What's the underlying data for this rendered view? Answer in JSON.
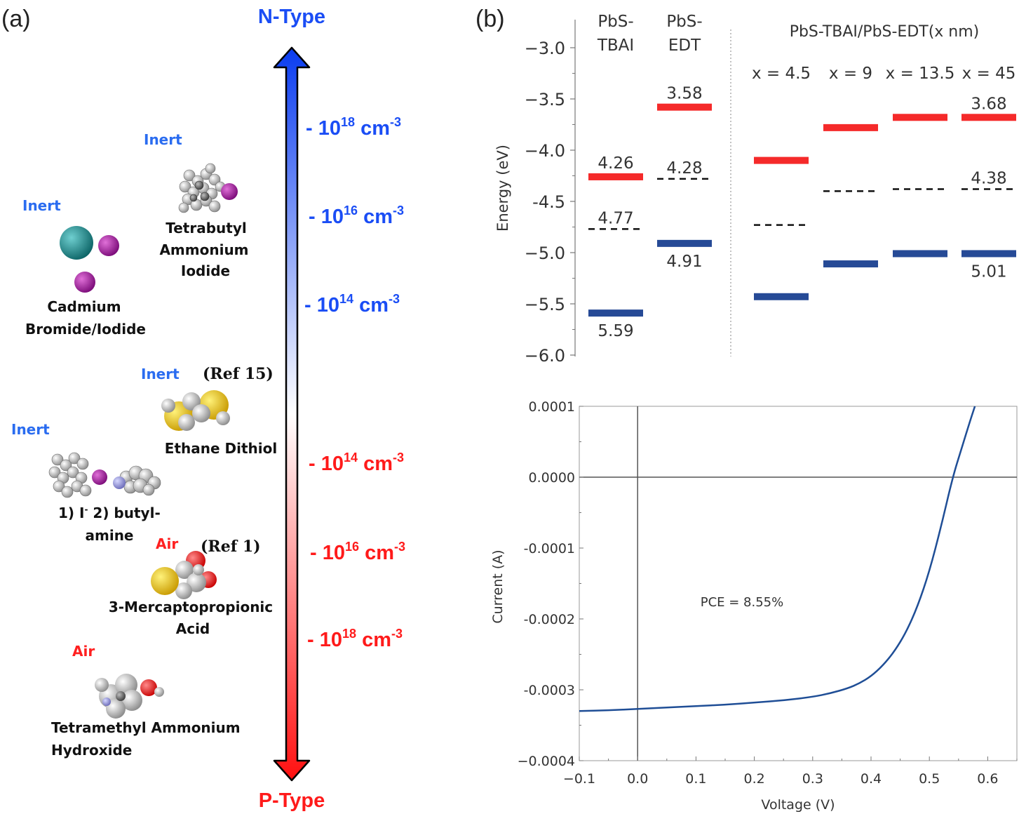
{
  "panel_a": {
    "label": "(a)",
    "top_label": "N-Type",
    "bottom_label": "P-Type",
    "colors": {
      "n": "#1a4df5",
      "p": "#ff1a1a",
      "inert": "#2a6cf0",
      "air": "#ff2020"
    },
    "doping_ticks": [
      {
        "base": "10",
        "exp": "18",
        "unit": "cm",
        "uexp": "-3",
        "type": "n"
      },
      {
        "base": "10",
        "exp": "16",
        "unit": "cm",
        "uexp": "-3",
        "type": "n"
      },
      {
        "base": "10",
        "exp": "14",
        "unit": "cm",
        "uexp": "-3",
        "type": "n"
      },
      {
        "base": "10",
        "exp": "14",
        "unit": "cm",
        "uexp": "-3",
        "type": "p"
      },
      {
        "base": "10",
        "exp": "16",
        "unit": "cm",
        "uexp": "-3",
        "type": "p"
      },
      {
        "base": "10",
        "exp": "18",
        "unit": "cm",
        "uexp": "-3",
        "type": "p"
      }
    ],
    "ligands": [
      {
        "atmosphere": "Inert",
        "name_lines": [
          "Tetrabutyl",
          "Ammonium",
          "Iodide"
        ],
        "ref": ""
      },
      {
        "atmosphere": "Inert",
        "name_lines": [
          "Cadmium",
          "Bromide/Iodide"
        ],
        "ref": ""
      },
      {
        "atmosphere": "Inert",
        "name_lines": [
          "Ethane Dithiol"
        ],
        "ref": "(Ref 15)"
      },
      {
        "atmosphere": "Inert",
        "name_lines": [
          "1) I",
          "-",
          " 2) butyl-",
          "amine"
        ],
        "ref": ""
      },
      {
        "atmosphere": "Air",
        "name_lines": [
          "3-Mercaptopropionic",
          "Acid"
        ],
        "ref": "(Ref 1)"
      },
      {
        "atmosphere": "Air",
        "name_lines": [
          "Tetramethyl Ammonium",
          "Hydroxide"
        ],
        "ref": ""
      }
    ]
  },
  "panel_b": {
    "label": "(b)",
    "chart_data": [
      {
        "type": "bar",
        "description_type": "energy-level diagram",
        "ylabel": "Energy (eV)",
        "ylim": [
          -6.0,
          -2.8
        ],
        "yticks": [
          "−3.0",
          "−3.5",
          "−4.0",
          "-4.5",
          "−5.0",
          "−5.5",
          "−6.0"
        ],
        "ytick_values": [
          -3.0,
          -3.5,
          -4.0,
          -4.5,
          -5.0,
          -5.5,
          -6.0
        ],
        "group_header": "PbS-TBAI/PbS-EDT(x nm)",
        "columns": [
          {
            "header": [
              "PbS-",
              "TBAI"
            ],
            "cb": -4.26,
            "fermi": -4.77,
            "vb": -5.59,
            "cb_label": "4.26",
            "fermi_label": "4.77",
            "vb_label": "5.59"
          },
          {
            "header": [
              "PbS-",
              "EDT"
            ],
            "cb": -3.58,
            "fermi": -4.28,
            "vb": -4.91,
            "cb_label": "3.58",
            "fermi_label": "4.28",
            "vb_label": "4.91"
          },
          {
            "header": [
              "x = 4.5"
            ],
            "cb": -4.1,
            "fermi": -4.73,
            "vb": -5.43,
            "cb_label": "",
            "fermi_label": "",
            "vb_label": ""
          },
          {
            "header": [
              "x = 9"
            ],
            "cb": -3.78,
            "fermi": -4.4,
            "vb": -5.11,
            "cb_label": "",
            "fermi_label": "",
            "vb_label": ""
          },
          {
            "header": [
              "x = 13.5"
            ],
            "cb": -3.68,
            "fermi": -4.38,
            "vb": -5.01,
            "cb_label": "",
            "fermi_label": "",
            "vb_label": ""
          },
          {
            "header": [
              "x = 45"
            ],
            "cb": -3.68,
            "fermi": -4.38,
            "vb": -5.01,
            "cb_label": "3.68",
            "fermi_label": "4.38",
            "vb_label": "5.01"
          }
        ],
        "colors": {
          "cb": "#f52a2a",
          "vb": "#264a96",
          "fermi": "#111111"
        }
      },
      {
        "type": "line",
        "xlabel": "Voltage (V)",
        "ylabel": "Current (A)",
        "xlim": [
          -0.1,
          0.65
        ],
        "ylim": [
          -0.0004,
          0.0001
        ],
        "xticks": [
          "−0.1",
          "0.0",
          "0.1",
          "0.2",
          "0.3",
          "0.4",
          "0.5",
          "0.6"
        ],
        "xtick_values": [
          -0.1,
          0.0,
          0.1,
          0.2,
          0.3,
          0.4,
          0.5,
          0.6
        ],
        "yticks": [
          "0.0001",
          "0.0000",
          "-0.0001",
          "-0.0002",
          "-0.0003",
          "−0.0004"
        ],
        "ytick_values": [
          0.0001,
          0.0,
          -0.0001,
          -0.0002,
          -0.0003,
          -0.0004
        ],
        "annotation": "PCE = 8.55%",
        "color": "#1f4e96",
        "x": [
          -0.1,
          -0.05,
          0.0,
          0.05,
          0.1,
          0.15,
          0.2,
          0.25,
          0.3,
          0.33,
          0.36,
          0.38,
          0.4,
          0.42,
          0.44,
          0.46,
          0.48,
          0.5,
          0.52,
          0.54,
          0.555,
          0.57,
          0.578
        ],
        "y": [
          -0.00033,
          -0.000329,
          -0.000327,
          -0.000325,
          -0.000323,
          -0.000321,
          -0.000318,
          -0.000315,
          -0.00031,
          -0.000305,
          -0.000298,
          -0.000291,
          -0.000281,
          -0.000266,
          -0.000246,
          -0.000219,
          -0.000182,
          -0.000133,
          -7e-05,
          0.0,
          4e-05,
          8e-05,
          0.0001
        ]
      }
    ]
  }
}
